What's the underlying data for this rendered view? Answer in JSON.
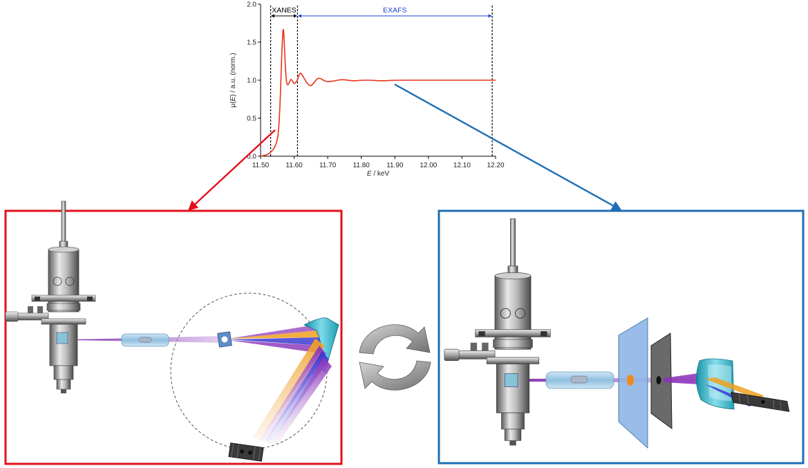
{
  "chart_data": {
    "type": "line",
    "xlabel_italic": "E",
    "xlabel_rest": " / keV",
    "ylabel_prefix": "μ(",
    "ylabel_italic": "E",
    "ylabel_rest": ") / a.u. (norm.)",
    "xlim": [
      11.5,
      12.2
    ],
    "ylim": [
      0.0,
      2.0
    ],
    "xticks": [
      11.5,
      11.6,
      11.7,
      11.8,
      11.9,
      12.0,
      12.1,
      12.2
    ],
    "xtick_labels": [
      "11.50",
      "11.60",
      "11.70",
      "11.80",
      "11.90",
      "12.00",
      "12.10",
      "12.20"
    ],
    "yticks": [
      0.0,
      0.5,
      1.0,
      1.5,
      2.0
    ],
    "ytick_labels": [
      "0.0",
      "0.5",
      "1.0",
      "1.5",
      "2.0"
    ],
    "grid": false,
    "series": [
      {
        "color": "#e8311a",
        "x": [
          11.5,
          11.52,
          11.53,
          11.54,
          11.548,
          11.553,
          11.556,
          11.559,
          11.562,
          11.565,
          11.568,
          11.571,
          11.574,
          11.577,
          11.58,
          11.585,
          11.59,
          11.595,
          11.6,
          11.605,
          11.61,
          11.615,
          11.62,
          11.63,
          11.64,
          11.65,
          11.66,
          11.67,
          11.68,
          11.69,
          11.7,
          11.72,
          11.74,
          11.76,
          11.78,
          11.8,
          11.83,
          11.86,
          11.9,
          11.95,
          12.0,
          12.05,
          12.1,
          12.15,
          12.2
        ],
        "y": [
          0.0,
          0.02,
          0.05,
          0.1,
          0.18,
          0.3,
          0.5,
          0.8,
          1.2,
          1.55,
          1.72,
          1.45,
          1.15,
          0.98,
          0.93,
          0.96,
          1.02,
          0.99,
          0.95,
          0.97,
          1.0,
          1.08,
          1.1,
          1.02,
          0.95,
          0.92,
          0.97,
          1.03,
          1.02,
          0.99,
          0.98,
          0.99,
          1.01,
          1.0,
          0.99,
          1.0,
          1.0,
          0.99,
          1.0,
          1.0,
          1.0,
          1.0,
          1.0,
          1.0,
          1.0
        ]
      }
    ],
    "regions": [
      {
        "label": "XANES",
        "x_start": 11.53,
        "x_end": 11.61,
        "color": "#000000"
      },
      {
        "label": "EXAFS",
        "x_start": 11.61,
        "x_end": 12.19,
        "color": "#1f3fd6"
      }
    ]
  },
  "colors": {
    "xanes_frame": "#e3101b",
    "exafs_frame": "#1f6db5",
    "cycle_arrow": "#808080",
    "beam_violet": "#8a2fb8",
    "beam_orange": "#f0a020",
    "beam_blue": "#3030d0",
    "crystal_cyan": "#2bb5c8"
  }
}
